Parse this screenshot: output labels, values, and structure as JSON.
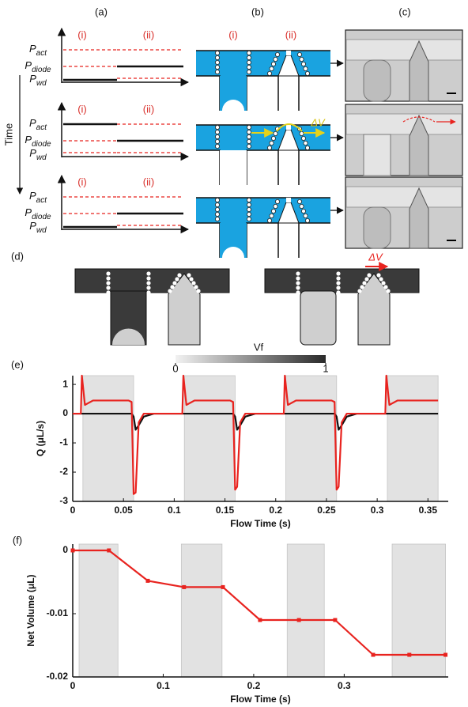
{
  "panel_labels": [
    "(a)",
    "(b)",
    "(c)",
    "(d)",
    "(e)",
    "(f)"
  ],
  "time_label": "Time",
  "panel_a": {
    "rows": [
      {
        "region_labels": [
          "(i)",
          "(ii)"
        ],
        "levels": [
          {
            "symbol": "P",
            "subscript": "act"
          },
          {
            "symbol": "P",
            "subscript": "diode"
          },
          {
            "symbol": "P",
            "subscript": "wd"
          }
        ]
      },
      {
        "region_labels": [
          "(i)",
          "(ii)"
        ],
        "levels": [
          {
            "symbol": "P",
            "subscript": "act"
          },
          {
            "symbol": "P",
            "subscript": "diode"
          },
          {
            "symbol": "P",
            "subscript": "wd"
          }
        ]
      },
      {
        "region_labels": [
          "(i)",
          "(ii)"
        ],
        "levels": [
          {
            "symbol": "P",
            "subscript": "act"
          },
          {
            "symbol": "P",
            "subscript": "diode"
          },
          {
            "symbol": "P",
            "subscript": "wd"
          }
        ]
      }
    ]
  },
  "panel_b": {
    "region_labels": [
      "(i)",
      "(ii)"
    ],
    "flow_label": "ΔV"
  },
  "panel_d": {
    "flow_label": "ΔV",
    "colorbar": {
      "label": "Vf",
      "ticks": [
        0,
        1
      ]
    }
  },
  "chart_data": [
    {
      "type": "line",
      "y_label": "Q (μL/s)",
      "x_label": "Flow Time (s)",
      "xlim": [
        0,
        0.37
      ],
      "ylim": [
        -3,
        1.3
      ],
      "xticks": [
        0,
        0.05,
        0.1,
        0.15,
        0.2,
        0.25,
        0.3,
        0.35
      ],
      "yticks": [
        1,
        0,
        -1,
        -2,
        -3
      ],
      "shaded_spans": [
        [
          0.01,
          0.06
        ],
        [
          0.11,
          0.16
        ],
        [
          0.21,
          0.26
        ],
        [
          0.31,
          0.36
        ]
      ],
      "x": [
        0,
        0.008,
        0.009,
        0.012,
        0.02,
        0.055,
        0.058,
        0.06,
        0.062,
        0.065,
        0.07,
        0.08,
        0.108,
        0.109,
        0.112,
        0.12,
        0.155,
        0.158,
        0.16,
        0.162,
        0.165,
        0.17,
        0.18,
        0.208,
        0.209,
        0.212,
        0.22,
        0.255,
        0.258,
        0.26,
        0.262,
        0.265,
        0.27,
        0.28,
        0.308,
        0.309,
        0.312,
        0.32,
        0.36
      ],
      "series": [
        {
          "color": "#111111",
          "values": [
            0,
            0,
            0,
            0,
            0,
            0,
            0,
            -0.1,
            -0.55,
            -0.4,
            -0.1,
            0,
            0,
            0,
            0,
            0,
            0,
            0,
            -0.1,
            -0.55,
            -0.4,
            -0.1,
            0,
            0,
            0,
            0,
            0,
            0,
            0,
            -0.1,
            -0.55,
            -0.4,
            -0.1,
            0,
            0,
            0,
            0,
            0,
            0
          ]
        },
        {
          "color": "#e8231f",
          "values": [
            0,
            0,
            1.3,
            0.3,
            0.45,
            0.45,
            0.4,
            -2.75,
            -2.7,
            -0.3,
            0,
            0,
            0,
            1.3,
            0.3,
            0.45,
            0.45,
            0.4,
            -2.6,
            -2.5,
            -0.3,
            0,
            0,
            0,
            1.3,
            0.3,
            0.45,
            0.45,
            0.4,
            -2.6,
            -2.5,
            -0.3,
            0,
            0,
            0,
            1.3,
            0.3,
            0.45,
            0.45
          ]
        }
      ]
    },
    {
      "type": "line",
      "y_label": "Net Volume (μL)",
      "x_label": "Flow Time (s)",
      "xlim": [
        0,
        0.415
      ],
      "ylim": [
        -0.02,
        0.001
      ],
      "xticks": [
        0,
        0.1,
        0.2,
        0.3
      ],
      "yticks": [
        0,
        -0.01,
        -0.02
      ],
      "markers": true,
      "shaded_spans": [
        [
          0.007,
          0.05
        ],
        [
          0.12,
          0.165
        ],
        [
          0.237,
          0.278
        ],
        [
          0.353,
          0.412
        ]
      ],
      "x": [
        0,
        0.04,
        0.083,
        0.123,
        0.166,
        0.207,
        0.25,
        0.29,
        0.332,
        0.372,
        0.412
      ],
      "series": [
        {
          "color": "#e8231f",
          "values": [
            0,
            0,
            -0.0048,
            -0.0058,
            -0.0058,
            -0.011,
            -0.011,
            -0.011,
            -0.0165,
            -0.0165,
            -0.0165
          ]
        }
      ]
    }
  ]
}
